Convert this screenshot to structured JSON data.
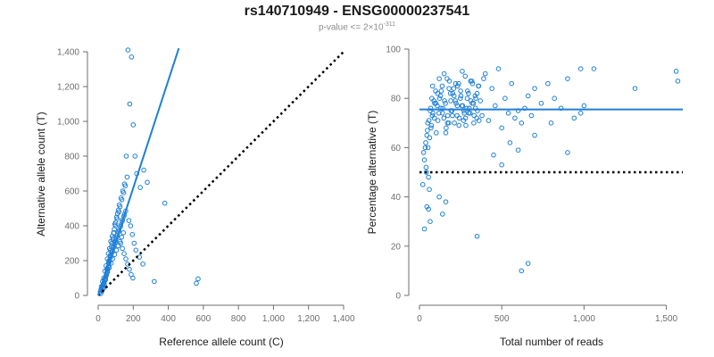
{
  "title": "rs140710949 - ENSG00000237541",
  "subtitle": {
    "prefix": "p-value <= 2×10",
    "exponent": "-311"
  },
  "colors": {
    "points": "#1f7fd6",
    "fit_line": "#1f7fd6",
    "reference_line": "#000000",
    "axis": "#6e6e6e"
  },
  "chart_data": [
    {
      "type": "scatter",
      "xlabel": "Reference allele count (C)",
      "ylabel": "Alternative allele count (T)",
      "xlim": [
        0,
        1400
      ],
      "ylim": [
        0,
        1400
      ],
      "xticks": [
        0,
        200,
        400,
        600,
        800,
        1000,
        1200,
        1400
      ],
      "yticks": [
        0,
        200,
        400,
        600,
        800,
        1000,
        1200,
        1400
      ],
      "xtick_labels": [
        "0",
        "200",
        "400",
        "600",
        "800",
        "1,000",
        "1,200",
        "1,400"
      ],
      "ytick_labels": [
        "0",
        "200",
        "400",
        "600",
        "800",
        "1,000",
        "1,200",
        "1,400"
      ],
      "fit_line": {
        "x": [
          0,
          460
        ],
        "y": [
          0,
          1420
        ],
        "style": "solid"
      },
      "reference_line": {
        "x": [
          0,
          1400
        ],
        "y": [
          0,
          1400
        ],
        "style": "dotted"
      },
      "points": {
        "x": [
          15,
          22,
          30,
          35,
          42,
          48,
          55,
          62,
          70,
          78,
          85,
          92,
          100,
          110,
          120,
          130,
          140,
          150,
          160,
          170,
          180,
          190,
          200,
          210,
          220,
          240,
          260,
          280,
          320,
          380,
          560,
          570,
          18,
          25,
          32,
          38,
          45,
          52,
          58,
          65,
          72,
          80,
          88,
          95,
          105,
          115,
          125,
          135,
          145,
          155,
          165,
          175,
          185,
          195,
          205,
          215,
          235,
          255,
          20,
          28,
          36,
          44,
          50,
          60,
          68,
          76,
          84,
          90,
          98,
          108,
          118,
          128,
          138,
          148,
          158,
          168,
          178,
          188,
          198,
          12,
          16,
          24,
          34,
          40,
          46,
          54,
          64,
          74,
          82,
          94,
          104,
          114,
          124,
          134,
          144,
          26,
          33,
          39,
          47,
          53,
          61,
          69,
          77,
          87,
          97,
          107,
          117,
          127,
          137,
          147,
          157,
          29,
          37,
          43,
          51,
          57,
          63,
          71,
          79,
          89,
          99,
          109,
          119,
          129,
          139,
          149
        ],
        "y": [
          10,
          25,
          40,
          60,
          90,
          120,
          150,
          200,
          260,
          300,
          330,
          380,
          420,
          470,
          520,
          560,
          600,
          640,
          800,
          1410,
          1100,
          1370,
          980,
          800,
          700,
          620,
          720,
          650,
          80,
          530,
          70,
          95,
          50,
          80,
          100,
          140,
          170,
          210,
          240,
          270,
          310,
          340,
          360,
          410,
          450,
          490,
          510,
          550,
          590,
          630,
          680,
          430,
          400,
          350,
          300,
          260,
          220,
          180,
          30,
          60,
          90,
          110,
          150,
          190,
          230,
          280,
          320,
          360,
          400,
          440,
          480,
          300,
          270,
          240,
          210,
          180,
          150,
          120,
          100,
          20,
          35,
          55,
          75,
          95,
          115,
          135,
          160,
          185,
          210,
          235,
          260,
          285,
          310,
          335,
          360,
          45,
          70,
          95,
          125,
          155,
          185,
          215,
          245,
          275,
          305,
          335,
          365,
          395,
          425,
          455,
          485,
          65,
          85,
          105,
          135,
          165,
          195,
          225,
          255,
          285,
          315,
          345,
          375,
          405,
          435,
          465
        ]
      }
    },
    {
      "type": "scatter",
      "xlabel": "Total number of reads",
      "ylabel": "Percentage alternative (T)",
      "xlim": [
        0,
        1600
      ],
      "ylim": [
        0,
        100
      ],
      "xticks": [
        0,
        500,
        1000,
        1500
      ],
      "yticks": [
        0,
        20,
        40,
        60,
        80,
        100
      ],
      "xtick_labels": [
        "0",
        "500",
        "1,000",
        "1,500"
      ],
      "ytick_labels": [
        "0",
        "20",
        "40",
        "60",
        "80",
        "100"
      ],
      "fit_line": {
        "x": [
          0,
          1600
        ],
        "y": [
          75.5,
          75.5
        ],
        "style": "solid"
      },
      "reference_line": {
        "x": [
          0,
          1600
        ],
        "y": [
          50,
          50
        ],
        "style": "dotted"
      },
      "points": {
        "x": [
          20,
          30,
          35,
          40,
          45,
          50,
          55,
          60,
          65,
          70,
          75,
          80,
          90,
          100,
          110,
          120,
          130,
          140,
          150,
          160,
          170,
          180,
          190,
          200,
          210,
          220,
          230,
          240,
          250,
          260,
          270,
          280,
          290,
          300,
          310,
          320,
          330,
          340,
          350,
          360,
          370,
          380,
          390,
          400,
          420,
          440,
          460,
          480,
          500,
          520,
          540,
          560,
          580,
          600,
          620,
          640,
          660,
          680,
          700,
          740,
          780,
          820,
          860,
          900,
          940,
          980,
          1000,
          1060,
          1310,
          1560,
          1570,
          25,
          38,
          48,
          58,
          68,
          78,
          88,
          98,
          108,
          118,
          128,
          138,
          148,
          158,
          168,
          178,
          188,
          198,
          208,
          218,
          228,
          238,
          248,
          258,
          268,
          278,
          288,
          298,
          308,
          318,
          328,
          338,
          348,
          358,
          42,
          52,
          62,
          72,
          82,
          92,
          102,
          112,
          122,
          132,
          142,
          152,
          162,
          172,
          182,
          192,
          202,
          212,
          222,
          232,
          242,
          252,
          262,
          272,
          282,
          292,
          302,
          312,
          322,
          332,
          342,
          352,
          362,
          30,
          45,
          55,
          65,
          120,
          140,
          160,
          350,
          620,
          660,
          450,
          500,
          550,
          600,
          700,
          800,
          900,
          980
        ],
        "y": [
          45,
          55,
          60,
          52,
          65,
          70,
          48,
          43,
          75,
          68,
          80,
          85,
          72,
          78,
          82,
          88,
          76,
          74,
          90,
          66,
          70,
          84,
          79,
          73,
          81,
          86,
          77,
          69,
          83,
          91,
          75,
          72,
          80,
          74,
          87,
          78,
          70,
          76,
          82,
          85,
          79,
          73,
          88,
          90,
          71,
          84,
          77,
          92,
          68,
          80,
          74,
          86,
          72,
          75,
          70,
          76,
          81,
          73,
          84,
          78,
          86,
          80,
          76,
          88,
          72,
          92,
          77,
          92,
          84,
          91,
          87,
          58,
          62,
          67,
          71,
          76,
          73,
          79,
          83,
          77,
          74,
          81,
          85,
          72,
          78,
          88,
          70,
          82,
          75,
          84,
          79,
          73,
          86,
          80,
          77,
          71,
          89,
          76,
          82,
          74,
          87,
          78,
          81,
          72,
          85,
          50,
          60,
          64,
          69,
          74,
          78,
          66,
          71,
          80,
          83,
          76,
          79,
          68,
          73,
          87,
          75,
          82,
          70,
          78,
          85,
          72,
          81,
          77,
          74,
          69,
          83,
          76,
          79,
          86,
          73,
          80,
          75,
          71,
          27,
          36,
          35,
          30,
          40,
          33,
          38,
          24,
          10,
          13,
          57,
          53,
          62,
          59,
          65,
          70,
          58,
          74
        ]
      }
    }
  ]
}
